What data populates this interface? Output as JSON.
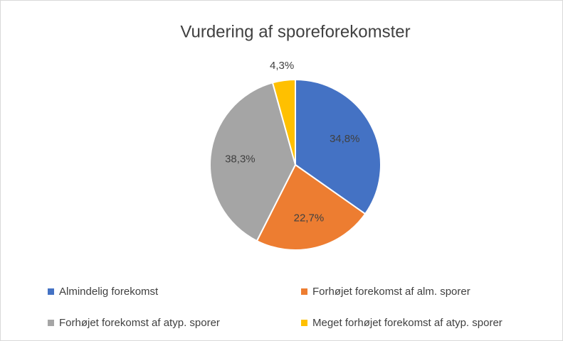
{
  "chart_data": {
    "type": "pie",
    "title": "Vurdering af sporeforekomster",
    "categories": [
      "Almindelig forekomst",
      "Forhøjet forekomst af alm. sporer",
      "Forhøjet forekomst af atyp. sporer",
      "Meget forhøjet forekomst af atyp. sporer"
    ],
    "values": [
      34.8,
      22.7,
      38.3,
      4.3
    ],
    "value_labels": [
      "34,8%",
      "22,7%",
      "38,3%",
      "4,3%"
    ],
    "colors": [
      "#4472c4",
      "#ed7d31",
      "#a5a5a5",
      "#ffc000"
    ],
    "legend": "bottom"
  }
}
